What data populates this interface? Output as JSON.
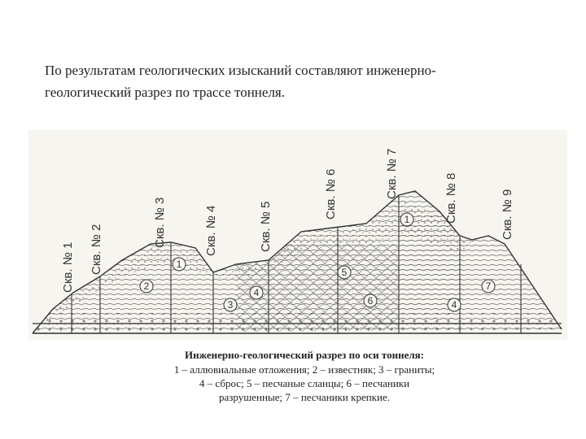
{
  "paragraph": {
    "lines": [
      "По результатам геологических изысканий составляют инженерно-",
      "геологический разрез по трассе тоннеля."
    ]
  },
  "figure": {
    "boreholes": [
      "Скв. № 1",
      "Скв. № 2",
      "Скв. № 3",
      "Скв. № 4",
      "Скв. № 5",
      "Скв. № 6",
      "Скв. № 7",
      "Скв. № 8",
      "Скв. № 9"
    ],
    "layer_markers": [
      "1",
      "2",
      "3",
      "4",
      "5",
      "6",
      "1",
      "4",
      "7"
    ],
    "caption": {
      "title": "Инженерно-геологический разрез по оси тоннеля:",
      "lines": [
        "1 – аллювиальные отложения; 2 – известняк; 3 – граниты;",
        "4 – сброс; 5 – песчаные сланцы; 6 – песчаники",
        "разрушенные; 7 – песчаники крепкие."
      ]
    }
  }
}
